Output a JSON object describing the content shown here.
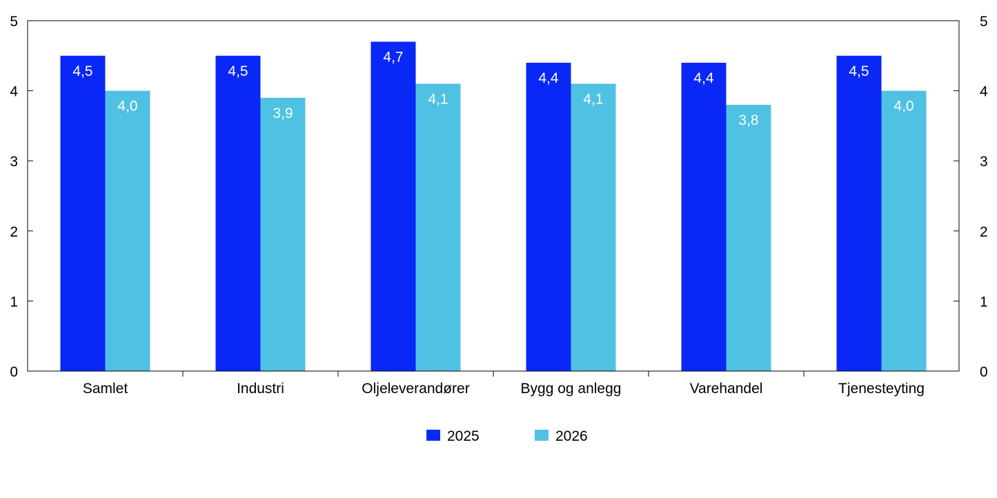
{
  "chart_data": {
    "type": "bar",
    "categories": [
      "Samlet",
      "Industri",
      "Oljeleverandører",
      "Bygg og anlegg",
      "Varehandel",
      "Tjenesteyting"
    ],
    "series": [
      {
        "name": "2025",
        "values": [
          4.5,
          4.5,
          4.7,
          4.4,
          4.4,
          4.5
        ],
        "labels": [
          "4,5",
          "4,5",
          "4,7",
          "4,4",
          "4,4",
          "4,5"
        ],
        "color": "#0a28f5"
      },
      {
        "name": "2026",
        "values": [
          4.0,
          3.9,
          4.1,
          4.1,
          3.8,
          4.0
        ],
        "labels": [
          "4,0",
          "3,9",
          "4,1",
          "4,1",
          "3,8",
          "4,0"
        ],
        "color": "#4fc1e2"
      }
    ],
    "ylim": [
      0,
      5
    ],
    "yticks": [
      "0",
      "1",
      "2",
      "3",
      "4",
      "5"
    ],
    "y2ticks": [
      "0",
      "1",
      "2",
      "3",
      "4",
      "5"
    ],
    "grid": false,
    "legend": "bottom-center"
  }
}
